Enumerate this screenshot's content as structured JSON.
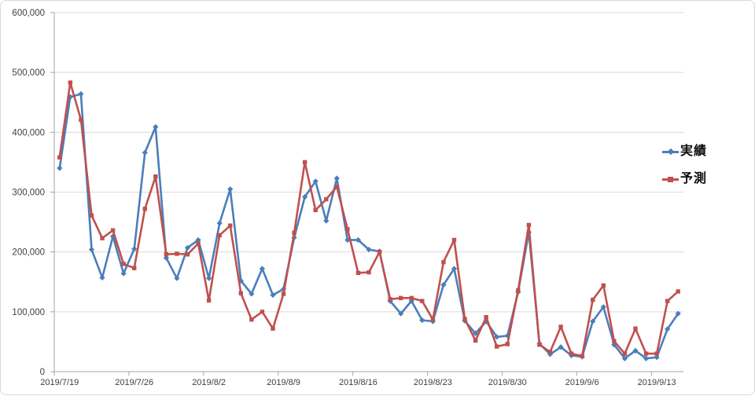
{
  "window": {
    "background": "#ffffff",
    "border_color": "#d9d9d9"
  },
  "legend": {
    "items": [
      {
        "label": "実績",
        "color": "#4A7EBB",
        "marker": "diamond"
      },
      {
        "label": "予測",
        "color": "#C0504D",
        "marker": "square"
      }
    ]
  },
  "chart_data": {
    "type": "line",
    "title": "",
    "grid": true,
    "legend_position": "right",
    "x": [
      "2019/7/19",
      "2019/7/20",
      "2019/7/21",
      "2019/7/22",
      "2019/7/23",
      "2019/7/24",
      "2019/7/25",
      "2019/7/26",
      "2019/7/27",
      "2019/7/28",
      "2019/7/29",
      "2019/7/30",
      "2019/7/31",
      "2019/8/1",
      "2019/8/2",
      "2019/8/3",
      "2019/8/4",
      "2019/8/5",
      "2019/8/6",
      "2019/8/7",
      "2019/8/8",
      "2019/8/9",
      "2019/8/10",
      "2019/8/11",
      "2019/8/12",
      "2019/8/13",
      "2019/8/14",
      "2019/8/15",
      "2019/8/16",
      "2019/8/17",
      "2019/8/18",
      "2019/8/19",
      "2019/8/20",
      "2019/8/21",
      "2019/8/22",
      "2019/8/23",
      "2019/8/24",
      "2019/8/25",
      "2019/8/26",
      "2019/8/27",
      "2019/8/28",
      "2019/8/29",
      "2019/8/30",
      "2019/8/31",
      "2019/9/1",
      "2019/9/2",
      "2019/9/3",
      "2019/9/4",
      "2019/9/5",
      "2019/9/6",
      "2019/9/7",
      "2019/9/8",
      "2019/9/9",
      "2019/9/10",
      "2019/9/11",
      "2019/9/12",
      "2019/9/13",
      "2019/9/14",
      "2019/9/15"
    ],
    "x_tick_labels": [
      "2019/7/19",
      "2019/7/26",
      "2019/8/2",
      "2019/8/9",
      "2019/8/16",
      "2019/8/23",
      "2019/8/30",
      "2019/9/6",
      "2019/9/13"
    ],
    "x_label_interval_days": 7,
    "y_axis": {
      "min": 0,
      "max": 600000,
      "step": 100000,
      "tick_labels": [
        "0",
        "100,000",
        "200,000",
        "300,000",
        "400,000",
        "500,000",
        "600,000"
      ]
    },
    "series": [
      {
        "name": "実績",
        "color": "#4A7EBB",
        "marker": "diamond",
        "values": [
          340000,
          459000,
          464000,
          204000,
          157000,
          226000,
          164000,
          205000,
          366000,
          409000,
          190000,
          156000,
          207000,
          220000,
          156000,
          248000,
          305000,
          152000,
          130000,
          172000,
          128000,
          138000,
          224000,
          292000,
          318000,
          252000,
          323000,
          220000,
          220000,
          204000,
          201000,
          118000,
          97000,
          118000,
          86000,
          84000,
          145000,
          172000,
          85000,
          64000,
          84000,
          58000,
          60000,
          133000,
          233000,
          47000,
          29000,
          41000,
          27000,
          25000,
          84000,
          108000,
          45000,
          22000,
          35000,
          22000,
          24000,
          71000,
          97000
        ]
      },
      {
        "name": "予測",
        "color": "#C0504D",
        "marker": "square",
        "values": [
          358000,
          483000,
          421000,
          261000,
          223000,
          236000,
          180000,
          173000,
          272000,
          326000,
          196000,
          197000,
          196000,
          214000,
          119000,
          228000,
          244000,
          131000,
          87000,
          100000,
          72000,
          130000,
          232000,
          350000,
          270000,
          288000,
          309000,
          238000,
          165000,
          166000,
          200000,
          121000,
          123000,
          123000,
          118000,
          87000,
          183000,
          220000,
          88000,
          52000,
          91000,
          42000,
          46000,
          136000,
          245000,
          45000,
          33000,
          75000,
          30000,
          26000,
          120000,
          144000,
          51000,
          30000,
          72000,
          30000,
          30000,
          118000,
          134000
        ]
      }
    ],
    "style": {
      "gridline_color": "#d9d9d9",
      "axis_color": "#a6a6a6",
      "axis_label_color": "#404040"
    }
  }
}
